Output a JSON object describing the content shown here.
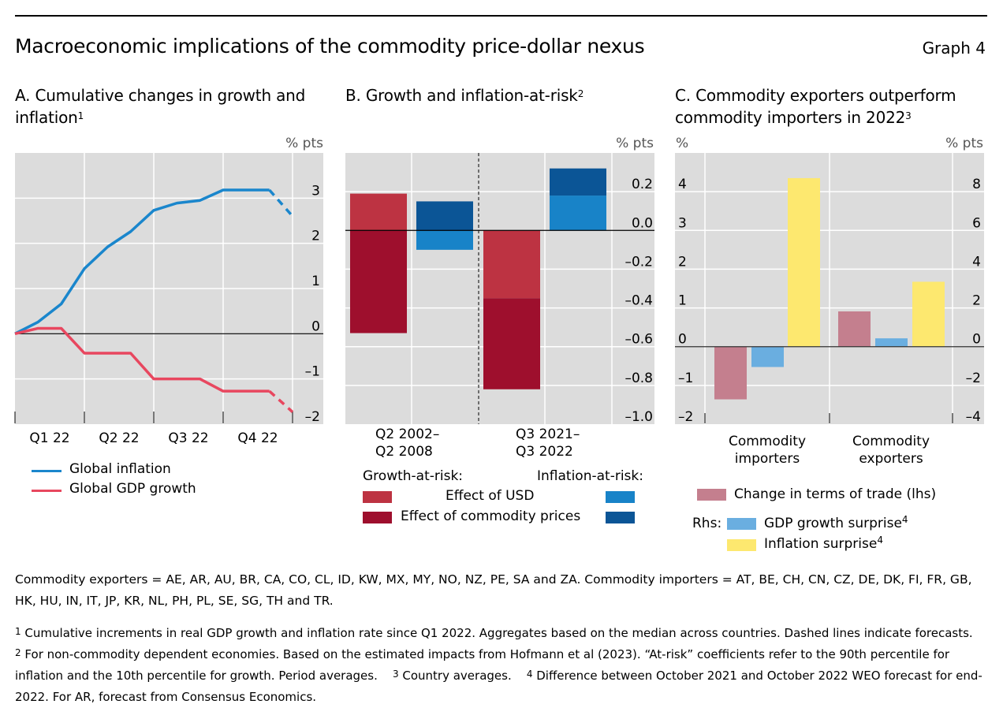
{
  "header": {
    "title": "Macroeconomic implications of the commodity price-dollar nexus",
    "graph_number": "Graph 4"
  },
  "panels": {
    "a": {
      "title": "A. Cumulative changes in growth and inflation",
      "title_sup": "1",
      "unit_right": "% pts"
    },
    "b": {
      "title": "B. Growth and inflation-at-risk",
      "title_sup": "2",
      "unit_right": "% pts"
    },
    "c": {
      "title": "C. Commodity exporters outperform commodity importers in 2022",
      "title_sup": "3",
      "unit_left": "%",
      "unit_right": "% pts"
    }
  },
  "legend": {
    "a": [
      {
        "label": "Global inflation",
        "color": "#1a86cc"
      },
      {
        "label": "Global GDP growth",
        "color": "#e8475f"
      }
    ],
    "b": {
      "growth_heading": "Growth-at-risk:",
      "inflation_heading": "Inflation-at-risk:",
      "rows": [
        {
          "label": "Effect of USD",
          "growth_color": "#bd3342",
          "inflation_color": "#1883c8"
        },
        {
          "label": "Effect of commodity prices",
          "growth_color": "#9e0f2d",
          "inflation_color": "#0b5596"
        }
      ]
    },
    "c": {
      "tot": {
        "label": "Change in terms of trade (lhs)",
        "color": "#c47f8e"
      },
      "rhs_prefix": "Rhs:",
      "gdp": {
        "label": "GDP growth surprise",
        "sup": "4",
        "color": "#6aaee0"
      },
      "infl": {
        "label": "Inflation surprise",
        "sup": "4",
        "color": "#fde86f"
      }
    }
  },
  "footer": {
    "definitions": "Commodity exporters = AE, AR, AU, BR, CA, CO, CL, ID, KW, MX, MY, NO, NZ, PE, SA and ZA. Commodity importers = AT, BE, CH, CN, CZ, DE, DK, FI, FR, GB, HK, HU, IN, IT, JP, KR, NL, PH, PL, SE, SG, TH and TR.",
    "notes": [
      {
        "num": "1",
        "text": "Cumulative increments in real GDP growth and inflation rate since Q1 2022. Aggregates based on the median across countries. Dashed lines indicate forecasts."
      },
      {
        "num": "2",
        "text": "For non-commodity dependent economies. Based on the estimated impacts from Hofmann et al (2023). “At-risk” coefficients refer to the 90th percentile for inflation and the 10th percentile for growth. Period averages."
      },
      {
        "num": "3",
        "text": "Country averages."
      },
      {
        "num": "4",
        "text": "Difference between October 2021 and October 2022 WEO forecast for end-2022. For AR, forecast from Consensus Economics."
      }
    ]
  },
  "chart_data": [
    {
      "type": "line",
      "title": "A. Cumulative changes in growth and inflation",
      "ylabel": "% pts",
      "ylim": [
        -2,
        4
      ],
      "yticks": [
        -2,
        -1,
        0,
        1,
        2,
        3
      ],
      "ytick_labels": [
        "–2",
        "–1",
        "0",
        "1",
        "2",
        "3"
      ],
      "xtick_labels": [
        "Q1 22",
        "Q2 22",
        "Q3 22",
        "Q4 22"
      ],
      "grid": true,
      "forecast_from_index": 11,
      "series": [
        {
          "name": "Global inflation",
          "color": "#1a86cc",
          "values": [
            0,
            0.26,
            0.66,
            1.44,
            1.92,
            2.26,
            2.73,
            2.89,
            2.95,
            3.18,
            3.18,
            3.18,
            2.6
          ]
        },
        {
          "name": "Global GDP growth",
          "color": "#e8475f",
          "values": [
            0,
            0.12,
            0.12,
            -0.43,
            -0.43,
            -0.43,
            -1.0,
            -1.0,
            -1.0,
            -1.27,
            -1.27,
            -1.27,
            -1.73
          ]
        }
      ]
    },
    {
      "type": "bar",
      "stacked": true,
      "title": "B. Growth and inflation-at-risk",
      "ylabel": "% pts",
      "ylim": [
        -1.0,
        0.4
      ],
      "yticks": [
        -1.0,
        -0.8,
        -0.6,
        -0.4,
        -0.2,
        0.0,
        0.2
      ],
      "ytick_labels": [
        "–1.0",
        "–0.8",
        "–0.6",
        "–0.4",
        "–0.2",
        "0.0",
        "0.2"
      ],
      "grid": true,
      "categories": [
        [
          "Q2 2002–",
          "Q2 2008"
        ],
        [
          "Q3 2021–",
          "Q3 2022"
        ]
      ],
      "series": [
        {
          "group": "Growth-at-risk",
          "name": "Effect of USD",
          "color": "#bd3342",
          "values": [
            0.19,
            -0.35
          ]
        },
        {
          "group": "Growth-at-risk",
          "name": "Effect of commodity prices",
          "color": "#9e0f2d",
          "values": [
            -0.53,
            -0.47
          ]
        },
        {
          "group": "Inflation-at-risk",
          "name": "Effect of USD",
          "color": "#1883c8",
          "values": [
            -0.1,
            0.18
          ]
        },
        {
          "group": "Inflation-at-risk",
          "name": "Effect of commodity prices",
          "color": "#0b5596",
          "values": [
            0.15,
            0.14
          ]
        }
      ]
    },
    {
      "type": "bar",
      "title": "C. Commodity exporters outperform commodity importers in 2022",
      "ylabel_left": "%",
      "ylabel_right": "% pts",
      "ylim_left": [
        -2,
        5
      ],
      "ylim_right": [
        -4,
        10
      ],
      "yticks_left": [
        -2,
        -1,
        0,
        1,
        2,
        3,
        4
      ],
      "ytick_labels_left": [
        "–2",
        "–1",
        "0",
        "1",
        "2",
        "3",
        "4"
      ],
      "yticks_right": [
        -4,
        -2,
        0,
        2,
        4,
        6,
        8
      ],
      "ytick_labels_right": [
        "–4",
        "–2",
        "0",
        "2",
        "4",
        "6",
        "8"
      ],
      "grid": true,
      "categories": [
        [
          "Commodity",
          "importers"
        ],
        [
          "Commodity",
          "exporters"
        ]
      ],
      "series": [
        {
          "name": "Change in terms of trade (lhs)",
          "axis": "left",
          "color": "#c47f8e",
          "values": [
            -1.36,
            0.91
          ]
        },
        {
          "name": "GDP growth surprise",
          "axis": "right",
          "color": "#6aaee0",
          "values": [
            -1.05,
            0.43
          ]
        },
        {
          "name": "Inflation surprise",
          "axis": "right",
          "color": "#fde86f",
          "values": [
            8.7,
            3.35
          ]
        }
      ]
    }
  ]
}
